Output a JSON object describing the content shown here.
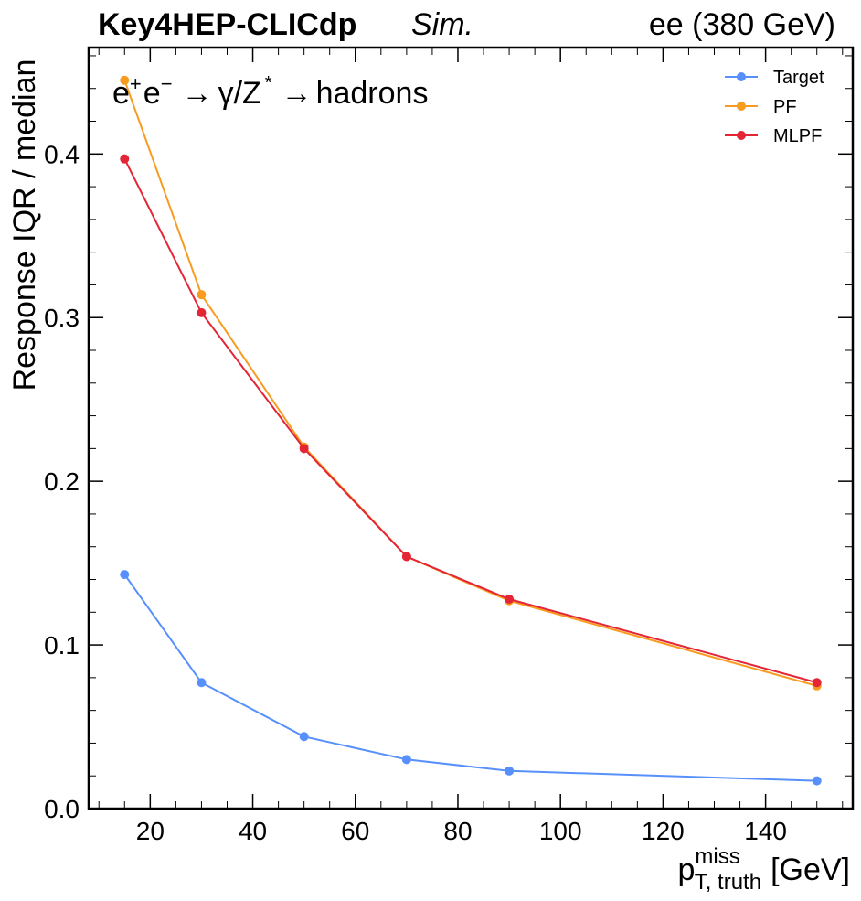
{
  "header": {
    "experiment": "Key4HEP-CLICdp",
    "status": "Sim.",
    "energy": "ee (380 GeV)"
  },
  "chart_data": {
    "type": "line",
    "annotation": {
      "prefix": "e",
      "sup_plus": "+",
      "middle": "e",
      "sup_minus": "−",
      "arrow1": "→",
      "boson": "γ/Z",
      "sup_star": "*",
      "arrow2": "→",
      "final": "hadrons"
    },
    "xlabel": {
      "main": "p",
      "sup": "miss",
      "sub": "T, truth",
      "unit": "[GeV]"
    },
    "ylabel": "Response IQR / median",
    "xlim": [
      8,
      157
    ],
    "ylim": [
      0.0,
      0.465
    ],
    "xticks": [
      20,
      40,
      60,
      80,
      100,
      120,
      140
    ],
    "xtick_labels": [
      "20",
      "40",
      "60",
      "80",
      "100",
      "120",
      "140"
    ],
    "yticks": [
      0.0,
      0.1,
      0.2,
      0.3,
      0.4
    ],
    "ytick_labels": [
      "0.0",
      "0.1",
      "0.2",
      "0.3",
      "0.4"
    ],
    "x": [
      15,
      30,
      50,
      70,
      90,
      150
    ],
    "series": [
      {
        "name": "Target",
        "color": "#5790fc",
        "values": [
          0.143,
          0.077,
          0.044,
          0.03,
          0.023,
          0.017
        ]
      },
      {
        "name": "PF",
        "color": "#f89c20",
        "values": [
          0.445,
          0.314,
          0.221,
          0.154,
          0.127,
          0.075
        ]
      },
      {
        "name": "MLPF",
        "color": "#e42536",
        "values": [
          0.397,
          0.303,
          0.22,
          0.154,
          0.128,
          0.077
        ]
      }
    ],
    "legend_position": "top-right"
  }
}
